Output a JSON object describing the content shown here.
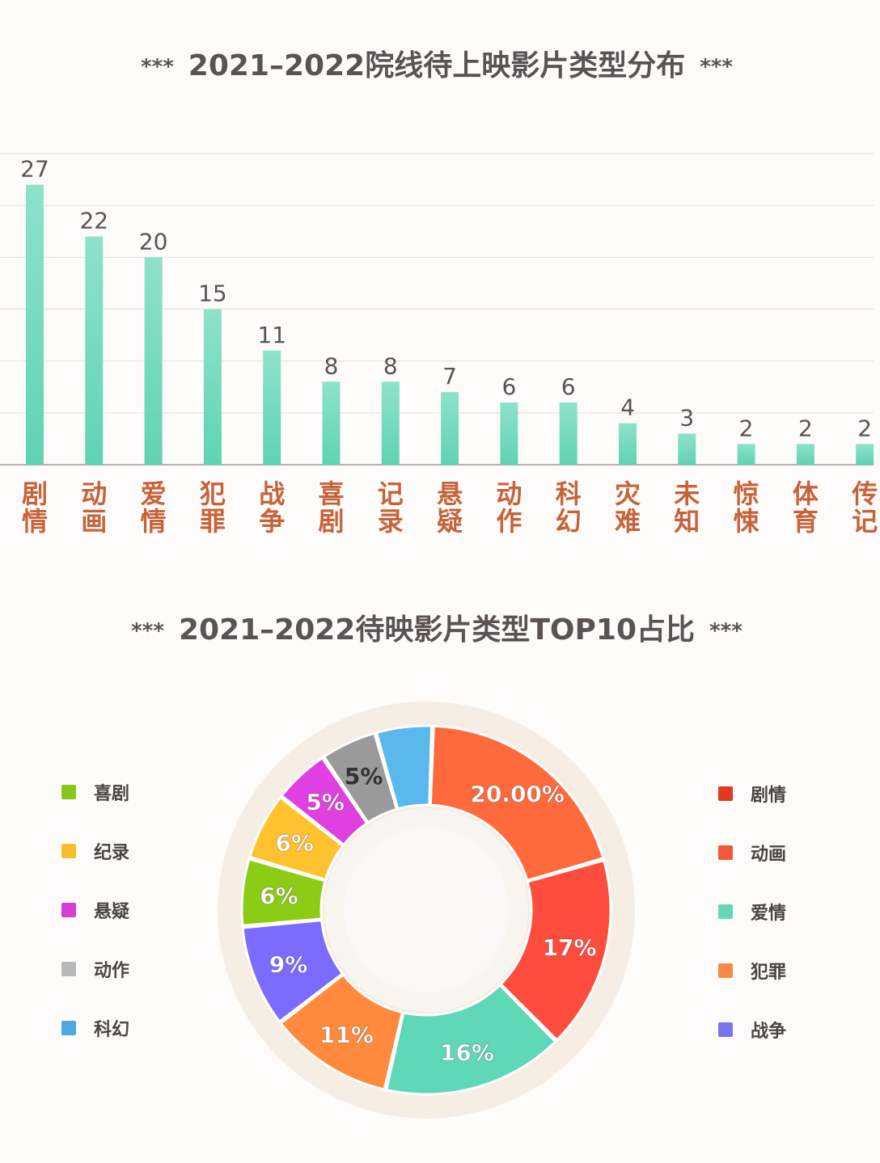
{
  "titles": {
    "bar": "2021–2022院线待上映影片类型分布",
    "donut": "2021–2022待映影片类型TOP10占比",
    "stars": "***"
  },
  "chart_data": [
    {
      "type": "bar",
      "title": "2021–2022院线待上映影片类型分布",
      "categories": [
        "剧情",
        "动画",
        "爱情",
        "犯罪",
        "战争",
        "喜剧",
        "记录",
        "悬疑",
        "动作",
        "科幻",
        "灾难",
        "未知",
        "惊悚",
        "体育",
        "传记"
      ],
      "values": [
        27,
        22,
        20,
        15,
        11,
        8,
        8,
        7,
        6,
        6,
        4,
        3,
        2,
        2,
        2
      ],
      "ylim": [
        0,
        30
      ],
      "grid": true,
      "bar_color": "#5fd3b3",
      "label_color": "#c7633a"
    },
    {
      "type": "pie",
      "title": "2021–2022待映影片类型TOP10占比",
      "labels": [
        "剧情",
        "动画",
        "爱情",
        "犯罪",
        "战争",
        "喜剧",
        "纪录",
        "悬疑",
        "动作",
        "科幻"
      ],
      "values": [
        20,
        17,
        16,
        11,
        9,
        6,
        6,
        5,
        5,
        5
      ],
      "display_labels": [
        "20.00%",
        "17%",
        "16%",
        "11%",
        "9%",
        "6%",
        "6%",
        "5%",
        "5%",
        ""
      ],
      "colors": [
        "#ff6a3c",
        "#ff4d3d",
        "#5fd8b8",
        "#ff8a3d",
        "#7b6bff",
        "#8ccc14",
        "#ffc22e",
        "#e040e0",
        "#9a9a9a",
        "#5ab8ec"
      ],
      "legend_colors": [
        "#e03a1e",
        "#f2583a",
        "#66d6b4",
        "#f78a48",
        "#7a73f0",
        "#86c71a",
        "#f5bf2c",
        "#d43ed6",
        "#b8b8b8",
        "#4fa8e0"
      ],
      "legend_left": [
        "喜剧",
        "纪录",
        "悬疑",
        "动作",
        "科幻"
      ],
      "legend_right": [
        "剧情",
        "动画",
        "爱情",
        "犯罪",
        "战争"
      ]
    }
  ]
}
